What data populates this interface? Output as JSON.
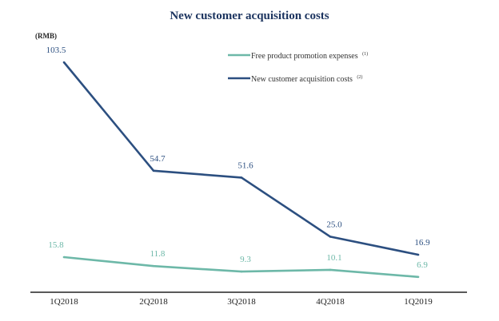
{
  "chart_data": {
    "type": "line",
    "title": "New customer acquisition costs",
    "unit_label": "(RMB)",
    "categories": [
      "1Q2018",
      "2Q2018",
      "3Q2018",
      "4Q2018",
      "1Q2019"
    ],
    "series": [
      {
        "name": "Free product promotion expenses",
        "footnote": "(1)",
        "color": "#6db8a8",
        "values": [
          15.8,
          11.8,
          9.3,
          10.1,
          6.9
        ],
        "labels": [
          "15.8",
          "11.8",
          "9.3",
          "10.1",
          "6.9"
        ]
      },
      {
        "name": "New customer acquisition costs",
        "footnote": "(2)",
        "color": "#2c4f80",
        "values": [
          103.5,
          54.7,
          51.6,
          25.0,
          16.9
        ],
        "labels": [
          "103.5",
          "54.7",
          "51.6",
          "25.0",
          "16.9"
        ]
      }
    ],
    "ylim": [
      0,
      115
    ],
    "grid": false,
    "legend": "top-right"
  }
}
